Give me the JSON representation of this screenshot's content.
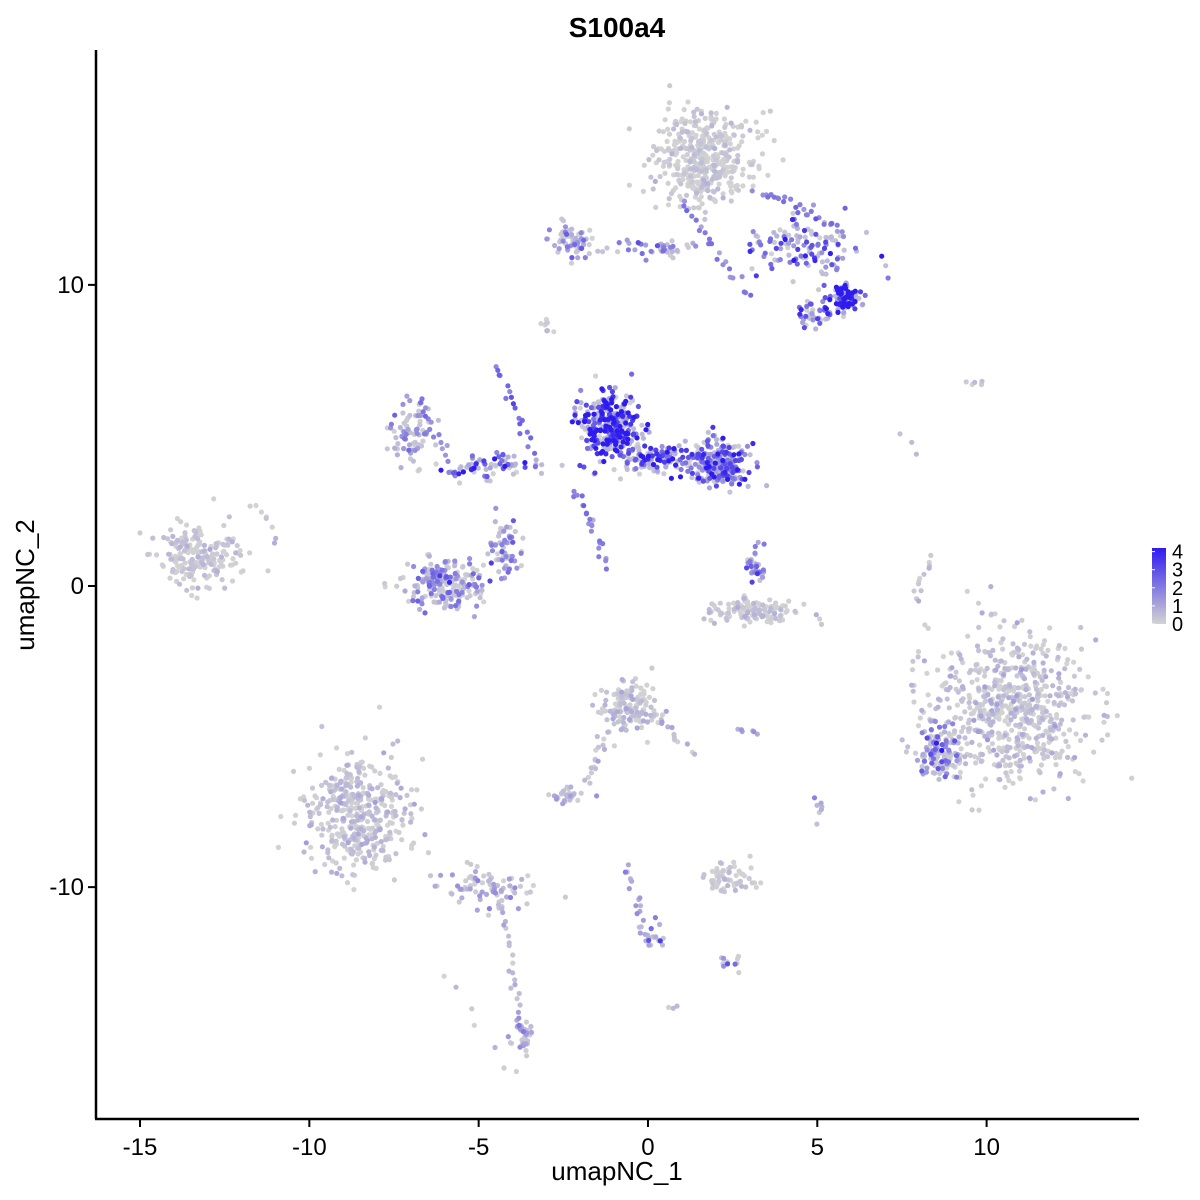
{
  "chart_data": {
    "type": "scatter",
    "title": "S100a4",
    "xlabel": "umapNC_1",
    "ylabel": "umapNC_2",
    "xlim": [
      -16.3,
      14.5
    ],
    "ylim": [
      -17.7,
      17.8
    ],
    "x_ticks": [
      -15,
      -10,
      -5,
      0,
      5,
      10
    ],
    "x_tick_labels": [
      "-15",
      "-10",
      "-5",
      "0",
      "5",
      "10"
    ],
    "y_ticks": [
      -10,
      0,
      10
    ],
    "y_tick_labels": [
      "-10",
      "0",
      "10"
    ],
    "grid": false,
    "legend": {
      "placement": "right",
      "values": [
        4,
        3,
        2,
        1,
        0
      ],
      "labels": [
        "4",
        "3",
        "2",
        "1",
        "0"
      ],
      "min": 0,
      "max": 4.2,
      "color_low": "#d3d3d3",
      "color_high": "#2e1bf0"
    },
    "clusters": [
      {
        "cx": 1.6,
        "cy": 14.2,
        "rx": 1.3,
        "ry": 1.4,
        "n": 420,
        "expr": 0.2
      },
      {
        "cx": 4.6,
        "cy": 11.3,
        "rx": 1.6,
        "ry": 0.9,
        "n": 120,
        "expr": 2.2
      },
      {
        "cx": 5.8,
        "cy": 9.6,
        "rx": 0.45,
        "ry": 0.45,
        "n": 90,
        "expr": 3.8
      },
      {
        "cx": 4.8,
        "cy": 9.0,
        "rx": 0.5,
        "ry": 0.4,
        "n": 40,
        "expr": 2.4
      },
      {
        "cx": -2.3,
        "cy": 11.5,
        "rx": 0.6,
        "ry": 0.5,
        "n": 60,
        "expr": 1.4
      },
      {
        "cx": 0.2,
        "cy": 11.2,
        "rx": 1.4,
        "ry": 0.3,
        "n": 40,
        "expr": 1.5
      },
      {
        "cx": -1.1,
        "cy": 5.4,
        "rx": 0.8,
        "ry": 0.9,
        "n": 300,
        "expr": 3.4
      },
      {
        "cx": 2.1,
        "cy": 4.0,
        "rx": 0.8,
        "ry": 0.7,
        "n": 200,
        "expr": 2.2
      },
      {
        "cx": 0.2,
        "cy": 4.2,
        "rx": 1.5,
        "ry": 0.5,
        "n": 150,
        "expr": 2.8
      },
      {
        "cx": -4.8,
        "cy": 3.9,
        "rx": 1.6,
        "ry": 0.4,
        "n": 70,
        "expr": 2.6
      },
      {
        "cx": -7.0,
        "cy": 5.2,
        "rx": 0.6,
        "ry": 0.9,
        "n": 70,
        "expr": 1.3
      },
      {
        "cx": -6.0,
        "cy": 0.0,
        "rx": 1.1,
        "ry": 0.8,
        "n": 200,
        "expr": 1.5
      },
      {
        "cx": -4.2,
        "cy": 1.2,
        "rx": 0.4,
        "ry": 0.8,
        "n": 60,
        "expr": 1.4
      },
      {
        "cx": 3.1,
        "cy": -0.8,
        "rx": 1.3,
        "ry": 0.4,
        "n": 120,
        "expr": 0.3
      },
      {
        "cx": 3.2,
        "cy": 0.7,
        "rx": 0.3,
        "ry": 0.5,
        "n": 30,
        "expr": 1.8
      },
      {
        "cx": -13.4,
        "cy": 1.0,
        "rx": 1.2,
        "ry": 0.9,
        "n": 200,
        "expr": 0.3
      },
      {
        "cx": -0.5,
        "cy": -4.0,
        "rx": 0.8,
        "ry": 0.7,
        "n": 150,
        "expr": 0.4
      },
      {
        "cx": 10.6,
        "cy": -4.2,
        "rx": 2.1,
        "ry": 2.3,
        "n": 650,
        "expr": 0.4
      },
      {
        "cx": 8.6,
        "cy": -5.6,
        "rx": 0.6,
        "ry": 0.9,
        "n": 110,
        "expr": 1.8
      },
      {
        "cx": -8.6,
        "cy": -7.6,
        "rx": 1.4,
        "ry": 1.7,
        "n": 420,
        "expr": 0.4
      },
      {
        "cx": -4.8,
        "cy": -10.0,
        "rx": 1.3,
        "ry": 0.6,
        "n": 80,
        "expr": 0.9
      },
      {
        "cx": -3.7,
        "cy": -15.0,
        "rx": 0.3,
        "ry": 0.6,
        "n": 40,
        "expr": 1.0
      },
      {
        "cx": 2.4,
        "cy": -9.7,
        "rx": 0.8,
        "ry": 0.4,
        "n": 60,
        "expr": 0.2
      },
      {
        "cx": -2.3,
        "cy": -6.9,
        "rx": 0.6,
        "ry": 0.3,
        "n": 30,
        "expr": 0.6
      },
      {
        "cx": 2.5,
        "cy": -12.5,
        "rx": 0.3,
        "ry": 0.2,
        "n": 12,
        "expr": 1.6
      },
      {
        "cx": 0.2,
        "cy": -11.6,
        "rx": 0.3,
        "ry": 0.5,
        "n": 14,
        "expr": 2.0
      }
    ],
    "streams": [
      {
        "x0": -2.2,
        "y0": 3.2,
        "x1": -1.2,
        "y1": 0.8,
        "n": 22,
        "expr": 1.8
      },
      {
        "x0": -4.5,
        "y0": 7.3,
        "x1": -3.4,
        "y1": 4.5,
        "n": 18,
        "expr": 2.3
      },
      {
        "x0": -6.0,
        "y0": -12.8,
        "x1": -4.3,
        "y1": -16.0,
        "n": 6,
        "expr": 0.2
      },
      {
        "x0": -4.3,
        "y0": -10.5,
        "x1": -3.8,
        "y1": -14.5,
        "n": 22,
        "expr": 0.5
      },
      {
        "x0": -0.6,
        "y0": -9.2,
        "x1": 0.0,
        "y1": -12.0,
        "n": 20,
        "expr": 1.0
      },
      {
        "x0": -1.2,
        "y0": -4.8,
        "x1": -1.8,
        "y1": -6.5,
        "n": 18,
        "expr": 0.3
      },
      {
        "x0": 0.2,
        "y0": -4.3,
        "x1": 1.2,
        "y1": -5.5,
        "n": 14,
        "expr": 0.4
      },
      {
        "x0": 7.9,
        "y0": -0.5,
        "x1": 8.3,
        "y1": 0.9,
        "n": 12,
        "expr": 0.2
      },
      {
        "x0": -10.8,
        "y0": 1.5,
        "x1": -11.7,
        "y1": 2.8,
        "n": 8,
        "expr": 0.3
      },
      {
        "x0": -6.8,
        "y0": 6.2,
        "x1": -5.7,
        "y1": 3.8,
        "n": 16,
        "expr": 1.7
      },
      {
        "x0": 1.0,
        "y0": 12.8,
        "x1": 3.0,
        "y1": 9.6,
        "n": 22,
        "expr": 2.0
      },
      {
        "x0": 3.2,
        "y0": 13.2,
        "x1": 5.8,
        "y1": 11.8,
        "n": 26,
        "expr": 1.9
      },
      {
        "x0": -3.1,
        "y0": 8.8,
        "x1": -2.9,
        "y1": 8.4,
        "n": 8,
        "expr": 0.2
      },
      {
        "x0": 9.4,
        "y0": 6.7,
        "x1": 9.9,
        "y1": 6.8,
        "n": 5,
        "expr": 0.2
      },
      {
        "x0": 5.0,
        "y0": -7.0,
        "x1": 5.1,
        "y1": -7.8,
        "n": 7,
        "expr": 0.5
      },
      {
        "x0": 2.7,
        "y0": -4.8,
        "x1": 3.2,
        "y1": -4.9,
        "n": 6,
        "expr": 1.2
      },
      {
        "x0": 0.6,
        "y0": -13.9,
        "x1": 0.7,
        "y1": -14.0,
        "n": 3,
        "expr": 0.2
      },
      {
        "x0": 7.6,
        "y0": 5.0,
        "x1": 7.9,
        "y1": 4.4,
        "n": 3,
        "expr": 0.2
      }
    ]
  }
}
